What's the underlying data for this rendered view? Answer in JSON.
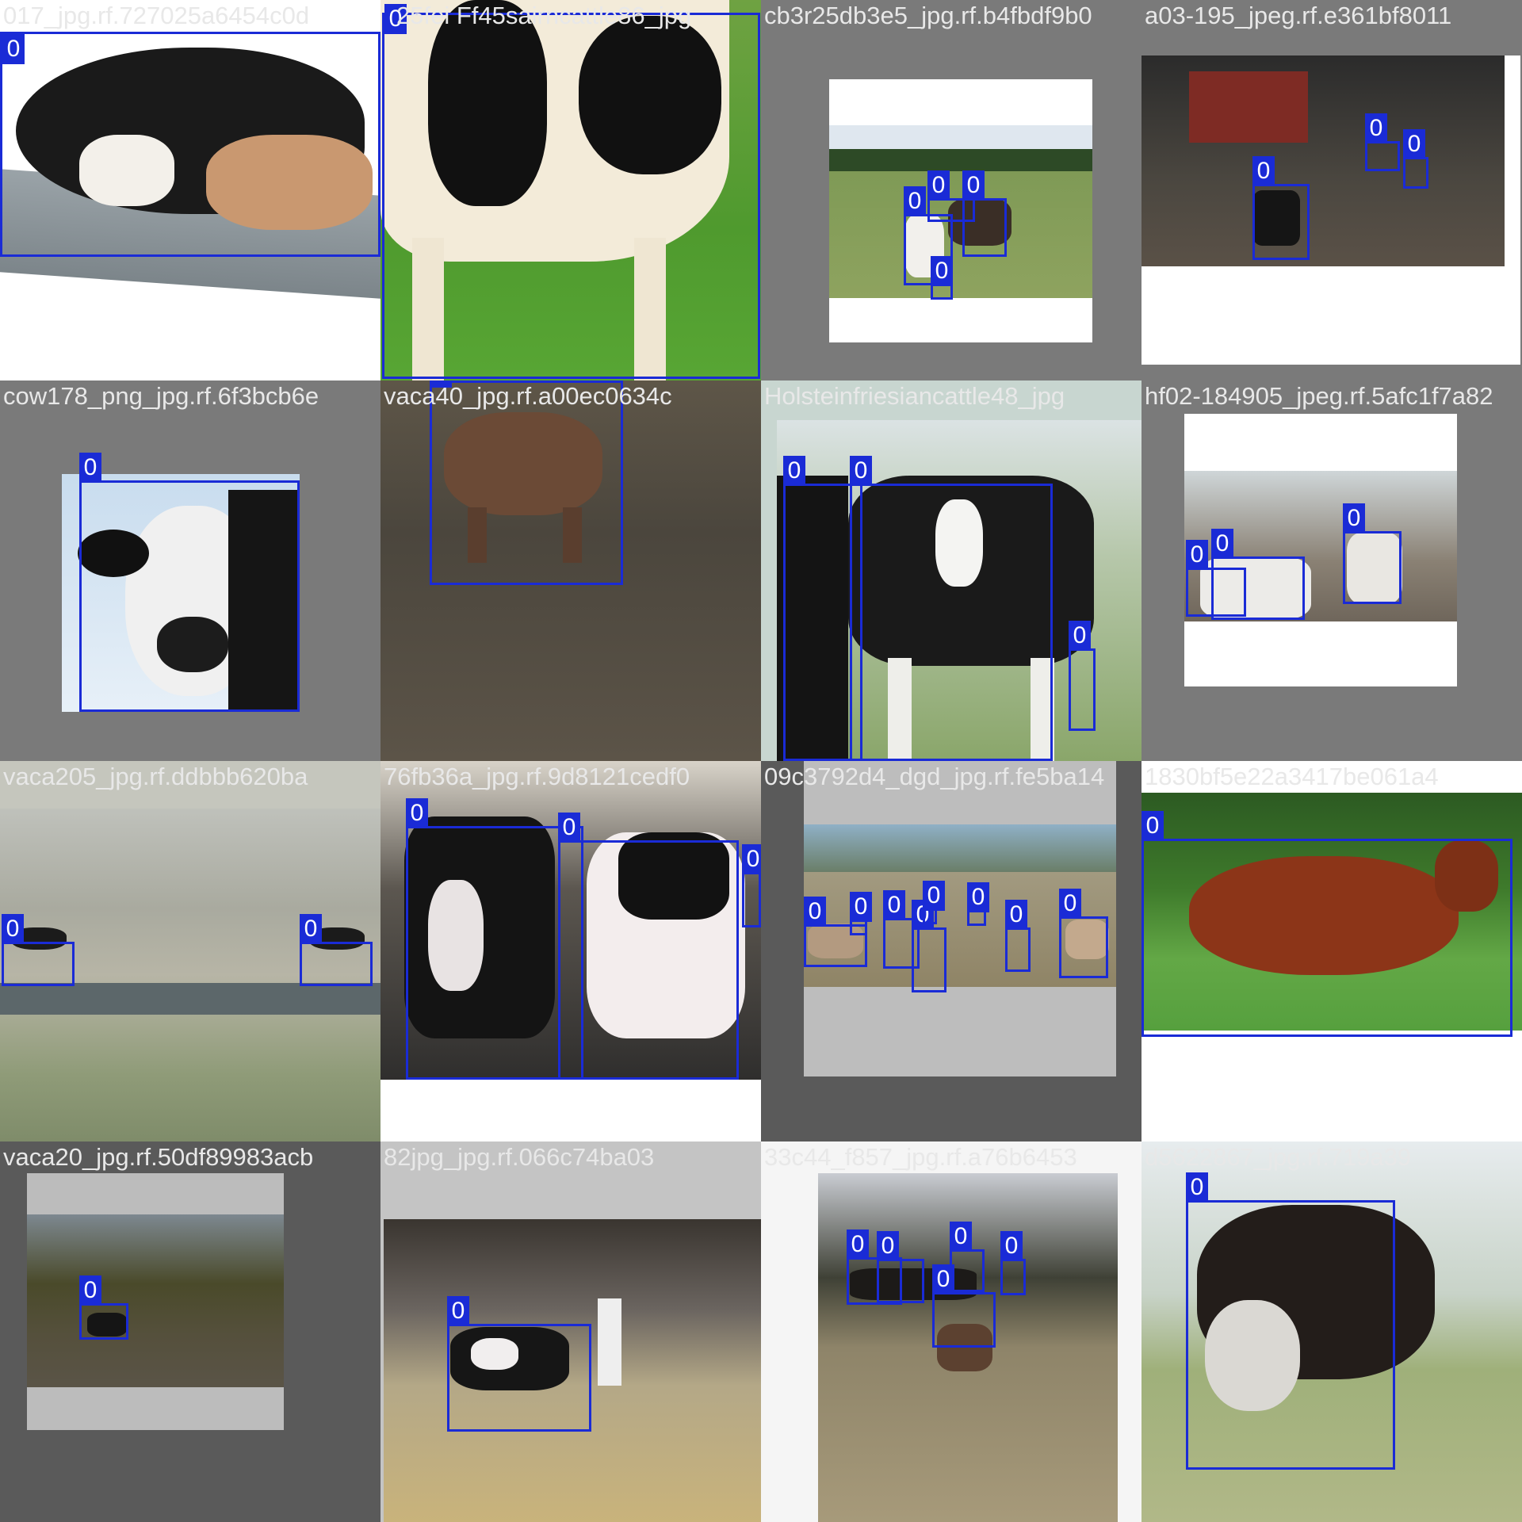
{
  "mosaic": {
    "tiles": [
      {
        "caption": "017_jpg.rf.727025a6454c0d",
        "boxes": [
          "0"
        ]
      },
      {
        "caption": "25fei Ff45sairncattle86_jpg",
        "boxes": [
          "0"
        ]
      },
      {
        "caption": "cb3r25db3e5_jpg.rf.b4fbdf9b0",
        "boxes": [
          "0",
          "0",
          "0",
          "0"
        ]
      },
      {
        "caption": "a03-195_jpeg.rf.e361bf8011",
        "boxes": [
          "0",
          "0",
          "0"
        ]
      },
      {
        "caption": "cow178_png_jpg.rf.6f3bcb6e",
        "boxes": [
          "0"
        ]
      },
      {
        "caption": "vaca40_jpg.rf.a00ec0634c",
        "boxes": [
          "0"
        ]
      },
      {
        "caption": "Holsteinfriesiancattle48_jpg",
        "boxes": [
          "0",
          "0",
          "0"
        ]
      },
      {
        "caption": "hf02-184905_jpeg.rf.5afc1f7a82",
        "boxes": [
          "0",
          "0",
          "0"
        ]
      },
      {
        "caption": "vaca205_jpg.rf.ddbbb620ba",
        "boxes": [
          "0",
          "0"
        ]
      },
      {
        "caption": "76fb36a_jpg.rf.9d8121cedf0",
        "boxes": [
          "0",
          "0",
          "0"
        ]
      },
      {
        "caption": "09c3792d4_dgd_jpg.rf.fe5ba14",
        "boxes": [
          "0",
          "0",
          "0",
          "0",
          "0",
          "0",
          "0",
          "0"
        ]
      },
      {
        "caption": "1830bf5e22a3417be061a4",
        "boxes": [
          "0"
        ]
      },
      {
        "caption": "vaca20_jpg.rf.50df89983acb",
        "boxes": [
          "0"
        ]
      },
      {
        "caption": "82jpg_jpg.rf.066c74ba03",
        "boxes": [
          "0"
        ]
      },
      {
        "caption": "33c44_f857_jpg.rf.a76b6453",
        "boxes": [
          "0",
          "0",
          "0",
          "0",
          "0"
        ]
      },
      {
        "caption": "d5622867_jpg.rf.719a39",
        "boxes": [
          "0"
        ]
      }
    ]
  },
  "colors": {
    "box": "#1a2bd6",
    "label_text": "#ffffff",
    "caption": "#e8e8e8",
    "pad_gray": "#7a7a7a"
  }
}
